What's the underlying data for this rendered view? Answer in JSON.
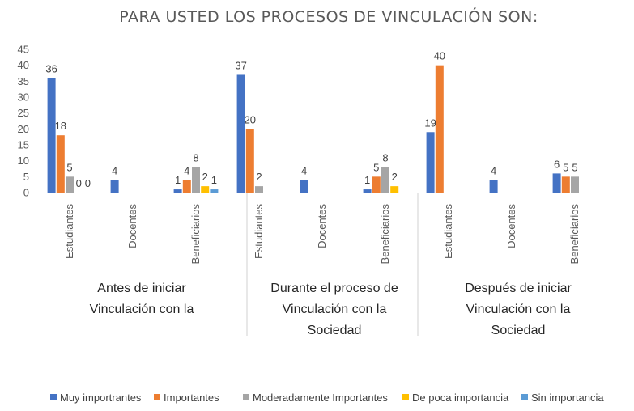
{
  "chart_data": {
    "type": "bar",
    "title": "PARA USTED LOS PROCESOS DE VINCULACIÓN SON:",
    "ylim": [
      0,
      45
    ],
    "yticks": [
      0,
      5,
      10,
      15,
      20,
      25,
      30,
      35,
      40,
      45
    ],
    "grid": false,
    "legend_position": "bottom",
    "groups": [
      {
        "label_lines": [
          "Antes de iniciar",
          "Vinculación con la"
        ],
        "categories": [
          "Estudiantes",
          "Docentes",
          "Beneficiarios"
        ]
      },
      {
        "label_lines": [
          "Durante el proceso de",
          "Vinculación con la",
          "Sociedad"
        ],
        "categories": [
          "Estudiantes",
          "Docentes",
          "Beneficiarios"
        ]
      },
      {
        "label_lines": [
          "Después de iniciar",
          "Vinculación con la",
          "Sociedad"
        ],
        "categories": [
          "Estudiantes",
          "Docentes",
          "Beneficiarios"
        ]
      }
    ],
    "series": [
      {
        "name": "Muy importrantes",
        "color": "#4472C4",
        "values": [
          36,
          4,
          1,
          37,
          4,
          1,
          19,
          4,
          6
        ]
      },
      {
        "name": "Importantes",
        "color": "#ED7D31",
        "values": [
          18,
          null,
          4,
          20,
          null,
          5,
          40,
          null,
          5
        ]
      },
      {
        "name": "Moderadamente Importantes",
        "color": "#A5A5A5",
        "values": [
          5,
          null,
          8,
          2,
          null,
          8,
          null,
          null,
          5
        ]
      },
      {
        "name": "De poca importancia",
        "color": "#FFC000",
        "values": [
          0,
          null,
          2,
          null,
          null,
          2,
          null,
          null,
          null
        ]
      },
      {
        "name": "Sin importancia",
        "color": "#5B9BD5",
        "values": [
          0,
          null,
          1,
          null,
          null,
          null,
          null,
          null,
          null
        ]
      }
    ],
    "data_labels": [
      [
        "36",
        "4",
        "1",
        "37",
        "4",
        "1",
        "19",
        "4",
        "6"
      ],
      [
        "18",
        "",
        "4",
        "20",
        "",
        "5",
        "40",
        "",
        "5"
      ],
      [
        "5",
        "",
        "8",
        "2",
        "",
        "8",
        "",
        "",
        "5"
      ],
      [
        "0",
        "",
        "2",
        "",
        "",
        "2",
        "",
        "",
        ""
      ],
      [
        "0",
        "",
        "1",
        "",
        "",
        "",
        "",
        "",
        ""
      ]
    ]
  }
}
